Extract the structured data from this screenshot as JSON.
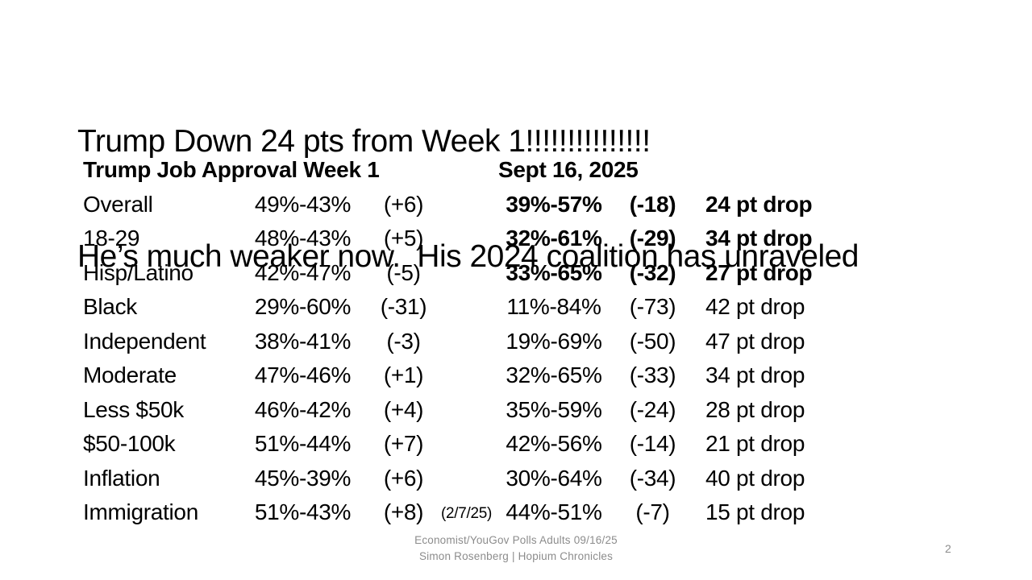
{
  "slide": {
    "title_line1": "Trump Down 24 pts from Week 1!!!!!!!!!!!!!!!",
    "title_line2": "He’s much weaker now.  His 2024 coalition has unraveled",
    "footer_line1": "Economist/YouGov Polls Adults 09/16/25",
    "footer_line2": "Simon Rosenberg | Hopium Chronicles",
    "page_number": "2"
  },
  "colors": {
    "text": "#000000",
    "muted_gray": "#8c8c8c",
    "background": "#ffffff"
  },
  "table": {
    "header": {
      "week1": "Trump Job Approval Week 1",
      "sept": "Sept 16, 2025"
    },
    "rows": [
      {
        "label": "Overall",
        "week1_score": "49%-43%",
        "week1_margin": "(+6)",
        "note": "",
        "sept_score": "39%-57%",
        "sept_margin": "(-18)",
        "drop": "24 pt drop",
        "sept_bold": true
      },
      {
        "label": "18-29",
        "week1_score": "48%-43%",
        "week1_margin": "(+5)",
        "note": "",
        "sept_score": "32%-61%",
        "sept_margin": "(-29)",
        "drop": "34 pt drop",
        "sept_bold": true
      },
      {
        "label": "Hisp/Latino",
        "week1_score": "42%-47%",
        "week1_margin": "(-5)",
        "note": "",
        "sept_score": "33%-65%",
        "sept_margin": "(-32)",
        "drop": "27 pt drop",
        "sept_bold": true
      },
      {
        "label": "Black",
        "week1_score": "29%-60%",
        "week1_margin": "(-31)",
        "note": "",
        "sept_score": "11%-84%",
        "sept_margin": "(-73)",
        "drop": "42 pt drop",
        "sept_bold": false
      },
      {
        "label": "Independent",
        "week1_score": "38%-41%",
        "week1_margin": "(-3)",
        "note": "",
        "sept_score": "19%-69%",
        "sept_margin": "(-50)",
        "drop": "47 pt drop",
        "sept_bold": false
      },
      {
        "label": "Moderate",
        "week1_score": "47%-46%",
        "week1_margin": "(+1)",
        "note": "",
        "sept_score": "32%-65%",
        "sept_margin": "(-33)",
        "drop": "34 pt drop",
        "sept_bold": false
      },
      {
        "label": "Less $50k",
        "week1_score": "46%-42%",
        "week1_margin": "(+4)",
        "note": "",
        "sept_score": "35%-59%",
        "sept_margin": "(-24)",
        "drop": "28 pt drop",
        "sept_bold": false
      },
      {
        "label": "$50-100k",
        "week1_score": "51%-44%",
        "week1_margin": "(+7)",
        "note": "",
        "sept_score": "42%-56%",
        "sept_margin": "(-14)",
        "drop": "21 pt drop",
        "sept_bold": false
      },
      {
        "label": "Inflation",
        "week1_score": "45%-39%",
        "week1_margin": "(+6)",
        "note": "",
        "sept_score": "30%-64%",
        "sept_margin": "(-34)",
        "drop": "40 pt drop",
        "sept_bold": false
      },
      {
        "label": "Immigration",
        "week1_score": "51%-43%",
        "week1_margin": "(+8)",
        "note": "(2/7/25)",
        "sept_score": "44%-51%",
        "sept_margin": "(-7)",
        "drop": "15 pt drop",
        "sept_bold": false
      }
    ]
  }
}
